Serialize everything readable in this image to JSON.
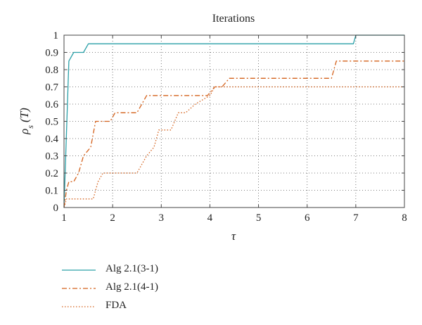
{
  "chart_data": {
    "type": "line",
    "title": "Iterations",
    "xlabel": "τ",
    "ylabel_main": "ρ",
    "ylabel_sub": "s",
    "ylabel_arg": "(T)",
    "xlim": [
      1,
      8
    ],
    "ylim": [
      0,
      1
    ],
    "xticks": [
      1,
      2,
      3,
      4,
      5,
      6,
      7,
      8
    ],
    "yticks": [
      0,
      0.1,
      0.2,
      0.3,
      0.4,
      0.5,
      0.6,
      0.7,
      0.8,
      0.9,
      1
    ],
    "xtick_labels": [
      "1",
      "2",
      "3",
      "4",
      "5",
      "6",
      "7",
      "8"
    ],
    "ytick_labels": [
      "0",
      "0.1",
      "0.2",
      "0.3",
      "0.4",
      "0.5",
      "0.6",
      "0.7",
      "0.8",
      "0.9",
      "1"
    ],
    "grid": true,
    "legend_position": "bottom",
    "series": [
      {
        "name": "Alg 2.1(3-1)",
        "color": "#2aa0a8",
        "style": "solid",
        "points": [
          [
            1,
            0
          ],
          [
            1.1,
            0.85
          ],
          [
            1.2,
            0.9
          ],
          [
            1.4,
            0.9
          ],
          [
            1.5,
            0.95
          ],
          [
            6.95,
            0.95
          ],
          [
            7.0,
            1.0
          ],
          [
            8,
            1.0
          ]
        ]
      },
      {
        "name": "Alg 2.1(4-1)",
        "color": "#d4601a",
        "style": "dashdot",
        "points": [
          [
            1,
            0
          ],
          [
            1.05,
            0.1
          ],
          [
            1.1,
            0.15
          ],
          [
            1.2,
            0.15
          ],
          [
            1.3,
            0.2
          ],
          [
            1.4,
            0.3
          ],
          [
            1.55,
            0.35
          ],
          [
            1.65,
            0.5
          ],
          [
            1.95,
            0.5
          ],
          [
            2.05,
            0.55
          ],
          [
            2.5,
            0.55
          ],
          [
            2.7,
            0.65
          ],
          [
            3.95,
            0.65
          ],
          [
            4.1,
            0.7
          ],
          [
            4.25,
            0.7
          ],
          [
            4.4,
            0.75
          ],
          [
            6.5,
            0.75
          ],
          [
            6.6,
            0.85
          ],
          [
            8,
            0.85
          ]
        ]
      },
      {
        "name": "FDA",
        "color": "#d4601a",
        "style": "dotted",
        "points": [
          [
            1,
            0
          ],
          [
            1.05,
            0.05
          ],
          [
            1.6,
            0.05
          ],
          [
            1.7,
            0.15
          ],
          [
            1.8,
            0.2
          ],
          [
            2.5,
            0.2
          ],
          [
            2.7,
            0.3
          ],
          [
            2.85,
            0.35
          ],
          [
            2.95,
            0.45
          ],
          [
            3.2,
            0.45
          ],
          [
            3.35,
            0.55
          ],
          [
            3.5,
            0.55
          ],
          [
            3.7,
            0.6
          ],
          [
            4.0,
            0.65
          ],
          [
            4.1,
            0.7
          ],
          [
            8,
            0.7
          ]
        ]
      }
    ]
  }
}
